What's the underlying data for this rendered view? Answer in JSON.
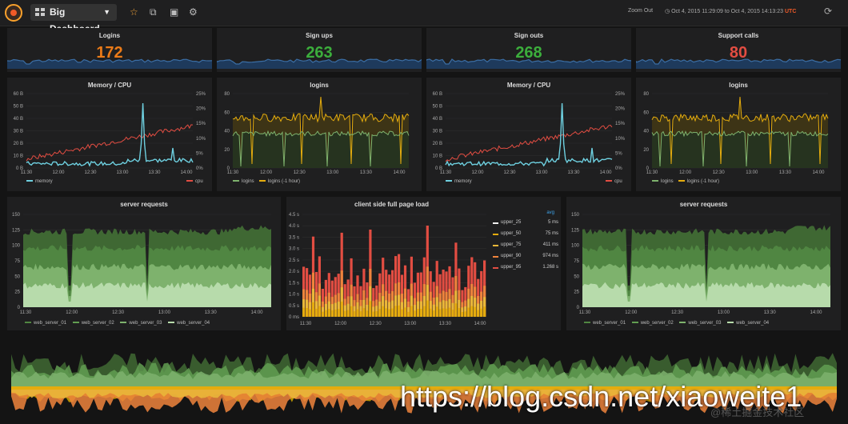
{
  "toolbar": {
    "dashboard_title": "Big Dashboard",
    "zoom_out": "Zoom Out",
    "time_range": "Oct 4, 2015 11:29:09 to Oct 4, 2015 14:13:23",
    "utc": "UTC"
  },
  "stats": [
    {
      "title": "Logins",
      "value": "172",
      "color": "#eb7b18"
    },
    {
      "title": "Sign ups",
      "value": "263",
      "color": "#3cae3c"
    },
    {
      "title": "Sign outs",
      "value": "268",
      "color": "#3cae3c"
    },
    {
      "title": "Support calls",
      "value": "80",
      "color": "#e24d42"
    }
  ],
  "time_ticks_wide": [
    "11:30",
    "12:00",
    "12:30",
    "13:00",
    "13:30",
    "14:00"
  ],
  "memory_cpu": {
    "title": "Memory / CPU",
    "left_ticks": [
      "0 B",
      "10 B",
      "20 B",
      "30 B",
      "40 B",
      "50 B",
      "60 B"
    ],
    "right_ticks": [
      "0%",
      "5%",
      "10%",
      "15%",
      "20%",
      "25%"
    ],
    "legend": [
      "memory",
      "cpu"
    ]
  },
  "logins_panel": {
    "title": "logins",
    "left_ticks": [
      "0",
      "20",
      "40",
      "60",
      "80"
    ],
    "legend": [
      "logins",
      "logins (-1 hour)"
    ]
  },
  "server_requests": {
    "title": "server requests",
    "left_ticks": [
      "0",
      "25",
      "50",
      "75",
      "100",
      "125",
      "150"
    ],
    "legend": [
      "web_server_01",
      "web_server_02",
      "web_server_03",
      "web_server_04"
    ]
  },
  "page_load": {
    "title": "client side full page load",
    "left_ticks": [
      "0 ms",
      "0.5 s",
      "1.0 s",
      "1.5 s",
      "2.0 s",
      "2.5 s",
      "3.0 s",
      "3.5 s",
      "4.0 s",
      "4.5 s"
    ],
    "x_ticks": [
      "11:30",
      "12:00",
      "12:30",
      "13:00",
      "13:30",
      "14:00"
    ],
    "avg_label": "avg",
    "legend": [
      {
        "name": "upper_25",
        "value": "5 ms",
        "color": "#f0f0f0"
      },
      {
        "name": "upper_50",
        "value": "75 ms",
        "color": "#e5ac0e"
      },
      {
        "name": "upper_75",
        "value": "411 ms",
        "color": "#eab839"
      },
      {
        "name": "upper_90",
        "value": "974 ms",
        "color": "#ef843c"
      },
      {
        "name": "upper_95",
        "value": "1.268 s",
        "color": "#e24d42"
      }
    ]
  },
  "watermark": "https://blog.csdn.net/xiaoweite1",
  "watermark_small": "@稀土掘金技术社区",
  "colors": {
    "orange": "#eb7b18",
    "green": "#3cae3c",
    "red": "#e24d42",
    "memory": "#6ed0e0",
    "cpu": "#e24d42",
    "login_a": "#7eb26d",
    "login_b": "#e5ac0e"
  }
}
